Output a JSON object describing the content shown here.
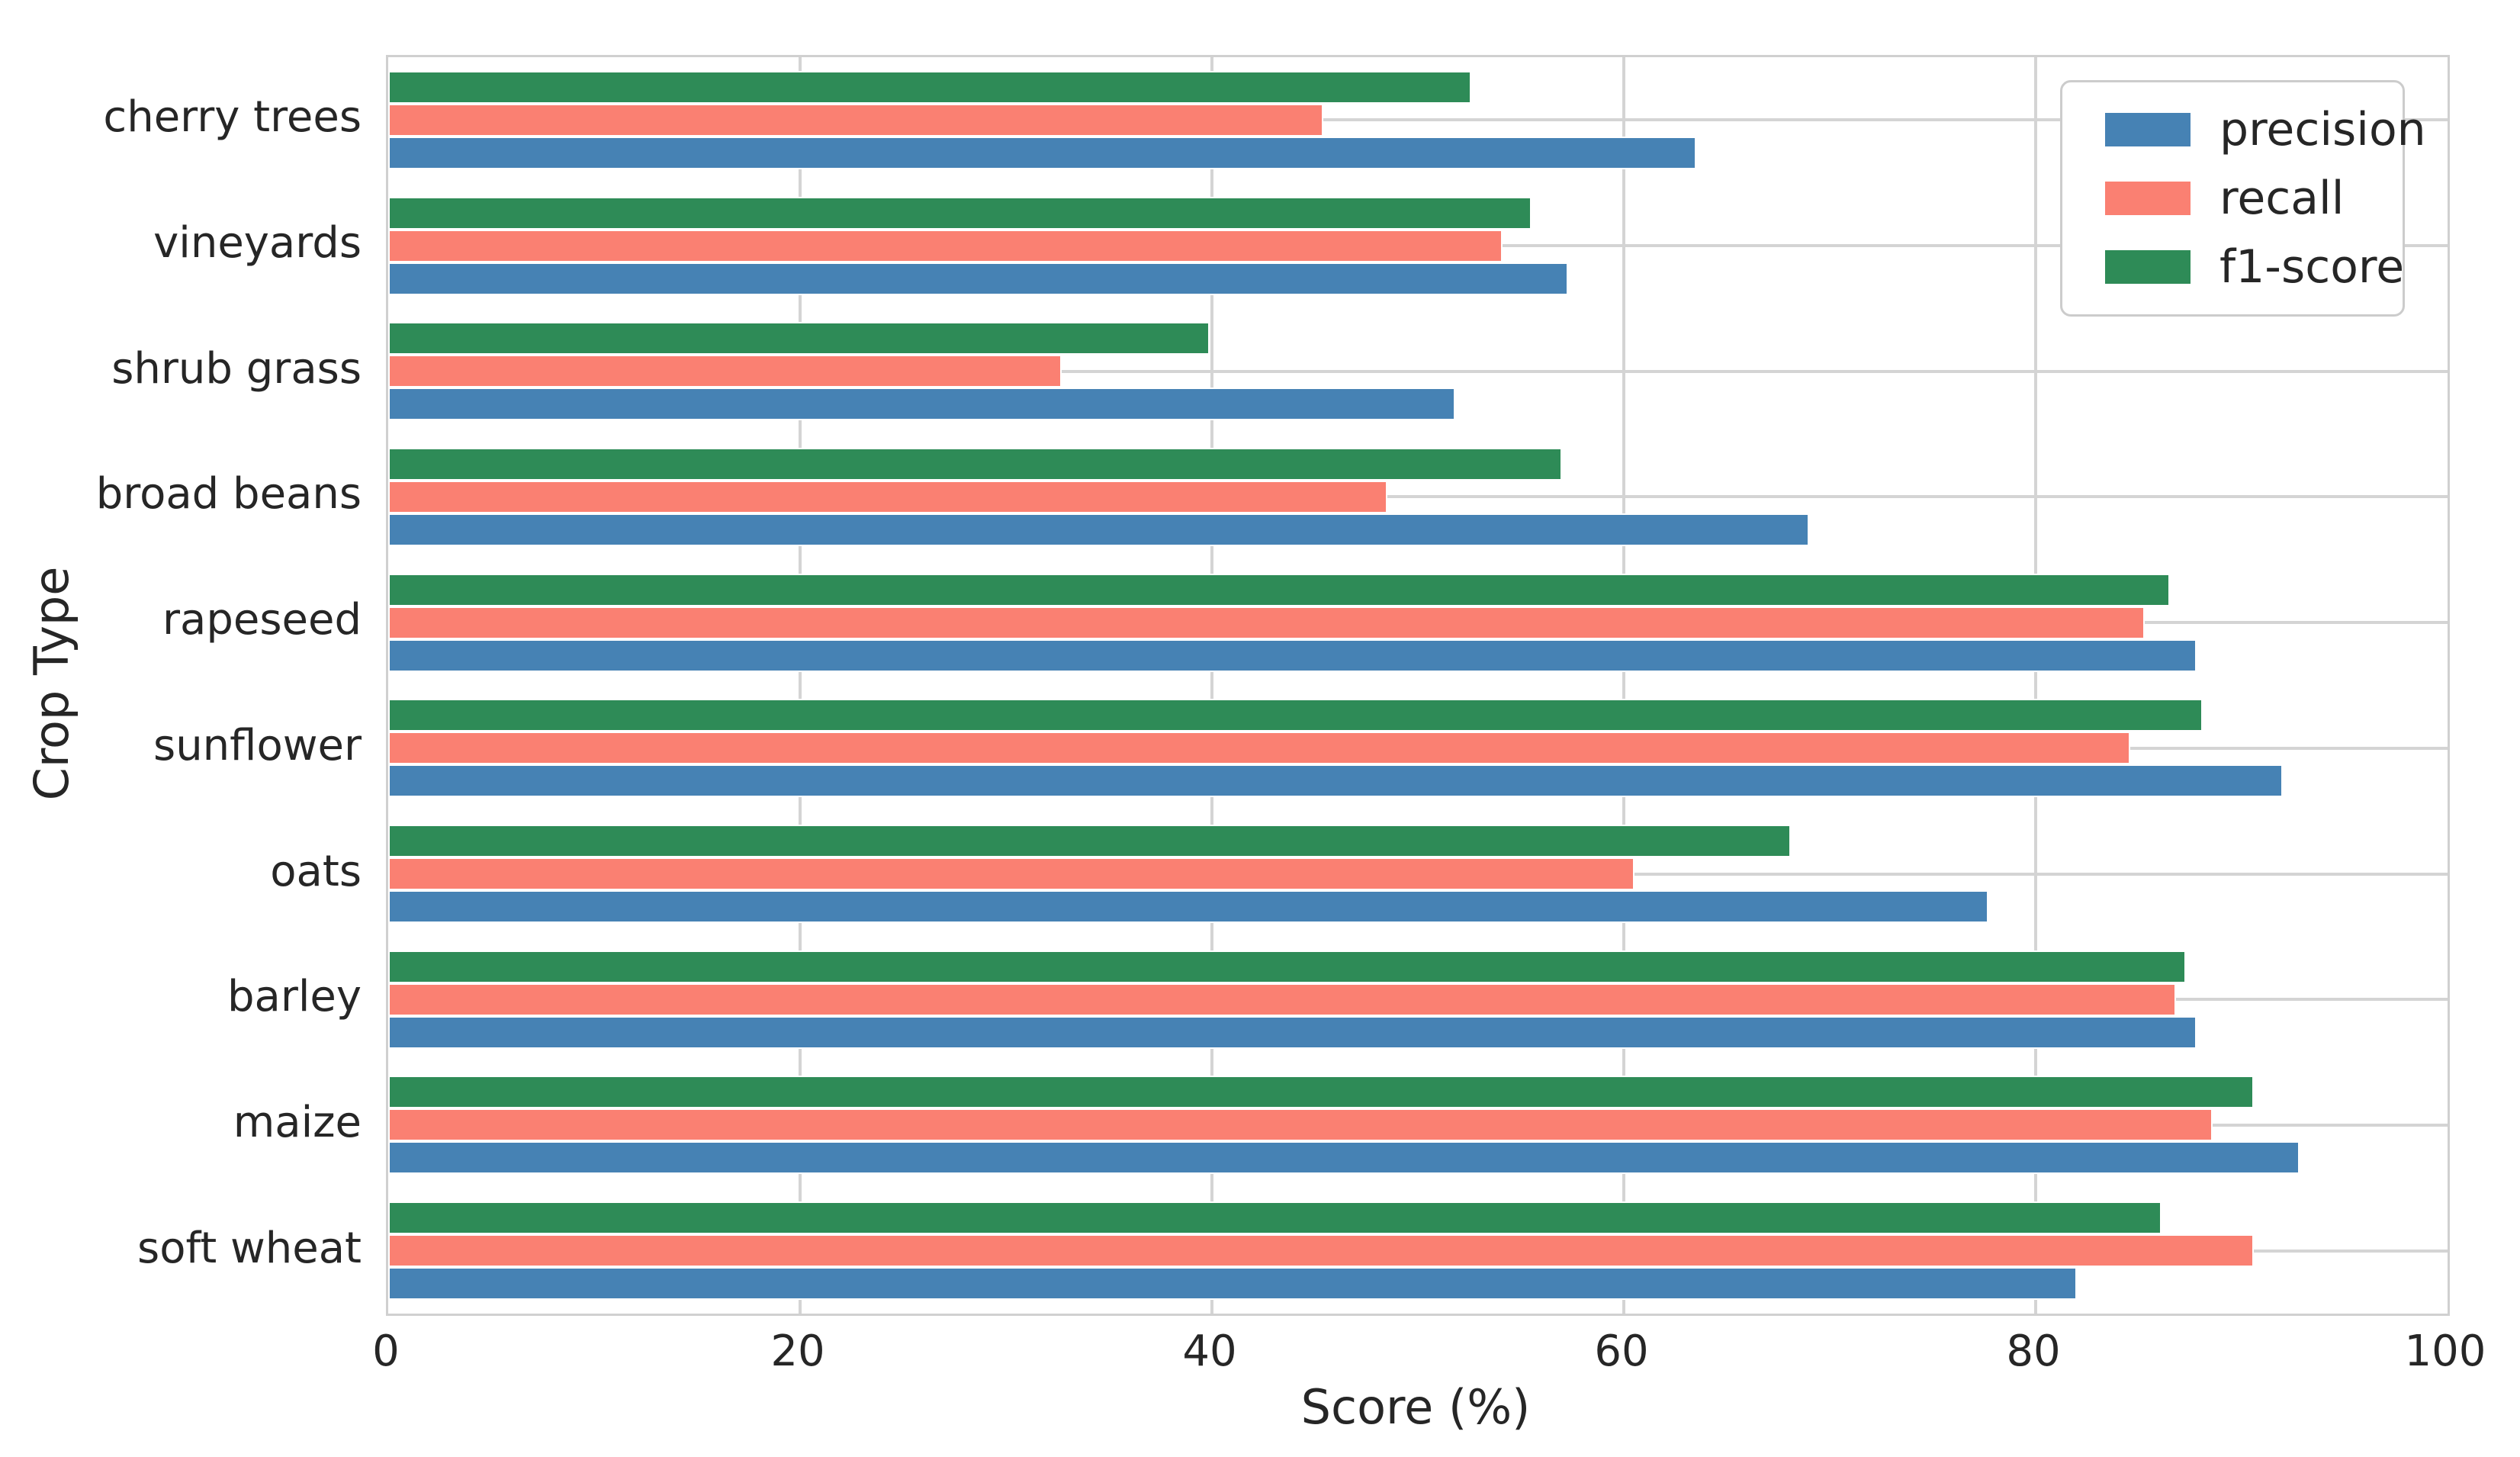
{
  "figure": {
    "background": "#ffffff",
    "text_color": "#262626",
    "grid_color": "#d4d4d4",
    "spine_color": "#d0d0d0",
    "legend_border_color": "#cccccc"
  },
  "chart_data": {
    "type": "bar",
    "orientation": "horizontal",
    "title": "",
    "xlabel": "Score (%)",
    "ylabel": "Crop Type",
    "xlim": [
      0,
      100
    ],
    "xticks": [
      0,
      20,
      40,
      60,
      80,
      100
    ],
    "grid": true,
    "legend_position": "upper right",
    "categories": [
      "cherry trees",
      "vineyards",
      "shrub grass",
      "broad beans",
      "rapeseed",
      "sunflower",
      "oats",
      "barley",
      "maize",
      "soft wheat"
    ],
    "series": [
      {
        "name": "precision",
        "color": "#4682b4",
        "values": [
          63.5,
          57.3,
          51.8,
          69.0,
          87.8,
          92.0,
          77.7,
          87.8,
          92.8,
          82.0
        ]
      },
      {
        "name": "recall",
        "color": "#fa8072",
        "values": [
          45.4,
          54.1,
          32.7,
          48.5,
          85.3,
          84.6,
          60.5,
          86.8,
          88.6,
          90.6
        ]
      },
      {
        "name": "f1-score",
        "color": "#2e8b57",
        "values": [
          52.6,
          55.5,
          39.9,
          57.0,
          86.5,
          88.1,
          68.1,
          87.3,
          90.6,
          86.1
        ]
      }
    ],
    "bar_display_order_top_to_bottom": [
      "f1-score",
      "recall",
      "precision"
    ]
  }
}
